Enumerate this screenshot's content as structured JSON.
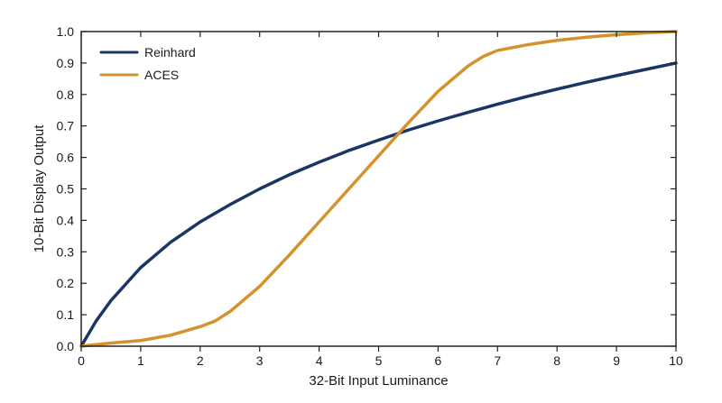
{
  "chart_data": {
    "type": "line",
    "xlabel": "32-Bit Input Luminance",
    "ylabel": "10-Bit Display Output",
    "xlim": [
      0,
      10
    ],
    "ylim": [
      0,
      1.0
    ],
    "x_ticks": [
      "0",
      "1",
      "2",
      "3",
      "4",
      "5",
      "6",
      "7",
      "8",
      "9",
      "10"
    ],
    "y_ticks": [
      "0.0",
      "0.1",
      "0.2",
      "0.3",
      "0.4",
      "0.5",
      "0.6",
      "0.7",
      "0.8",
      "0.9",
      "1.0"
    ],
    "grid": false,
    "legend_position": "top-left",
    "series": [
      {
        "name": "Reinhard",
        "color": "#1b3564",
        "x": [
          0,
          0.25,
          0.5,
          1,
          1.5,
          2,
          2.5,
          3,
          3.5,
          4,
          4.5,
          5,
          5.5,
          6,
          6.5,
          7,
          7.5,
          8,
          8.5,
          9,
          9.5,
          10
        ],
        "y": [
          0.0,
          0.08,
          0.145,
          0.25,
          0.33,
          0.395,
          0.45,
          0.5,
          0.545,
          0.585,
          0.622,
          0.655,
          0.687,
          0.716,
          0.743,
          0.769,
          0.794,
          0.817,
          0.839,
          0.86,
          0.88,
          0.9
        ]
      },
      {
        "name": "ACES",
        "color": "#d4922c",
        "x": [
          0,
          0.5,
          1,
          1.5,
          2,
          2.25,
          2.5,
          3,
          3.5,
          4,
          4.5,
          5,
          5.5,
          6,
          6.5,
          6.75,
          7,
          7.5,
          8,
          8.5,
          9,
          9.5,
          10
        ],
        "y": [
          0.0,
          0.01,
          0.018,
          0.035,
          0.062,
          0.08,
          0.11,
          0.19,
          0.29,
          0.395,
          0.5,
          0.605,
          0.71,
          0.81,
          0.89,
          0.92,
          0.94,
          0.958,
          0.972,
          0.982,
          0.99,
          0.996,
          1.0
        ]
      }
    ]
  }
}
